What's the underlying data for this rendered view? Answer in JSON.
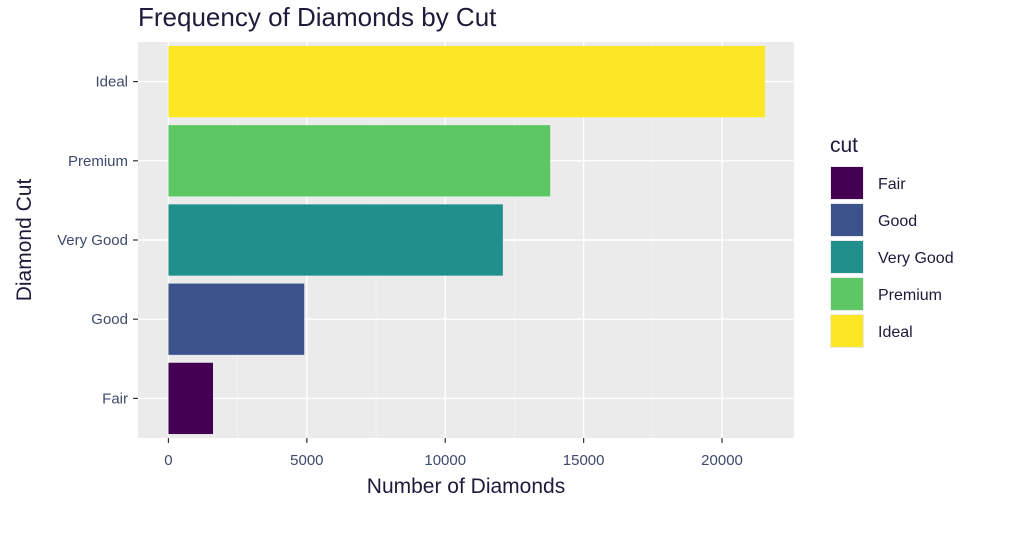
{
  "chart_data": {
    "type": "bar",
    "orientation": "horizontal",
    "title": "Frequency of Diamonds by Cut",
    "xlabel": "Number of Diamonds",
    "ylabel": "Diamond Cut",
    "categories": [
      "Fair",
      "Good",
      "Very Good",
      "Premium",
      "Ideal"
    ],
    "values": [
      1610,
      4906,
      12082,
      13791,
      21551
    ],
    "colors": [
      "#440154",
      "#3B528B",
      "#21908C",
      "#5DC863",
      "#FDE725"
    ],
    "xlim": [
      -1100,
      22600
    ],
    "x_ticks": [
      0,
      5000,
      10000,
      15000,
      20000
    ],
    "grid": true,
    "legend": {
      "title": "cut",
      "position": "right",
      "entries": [
        "Fair",
        "Good",
        "Very Good",
        "Premium",
        "Ideal"
      ]
    }
  }
}
